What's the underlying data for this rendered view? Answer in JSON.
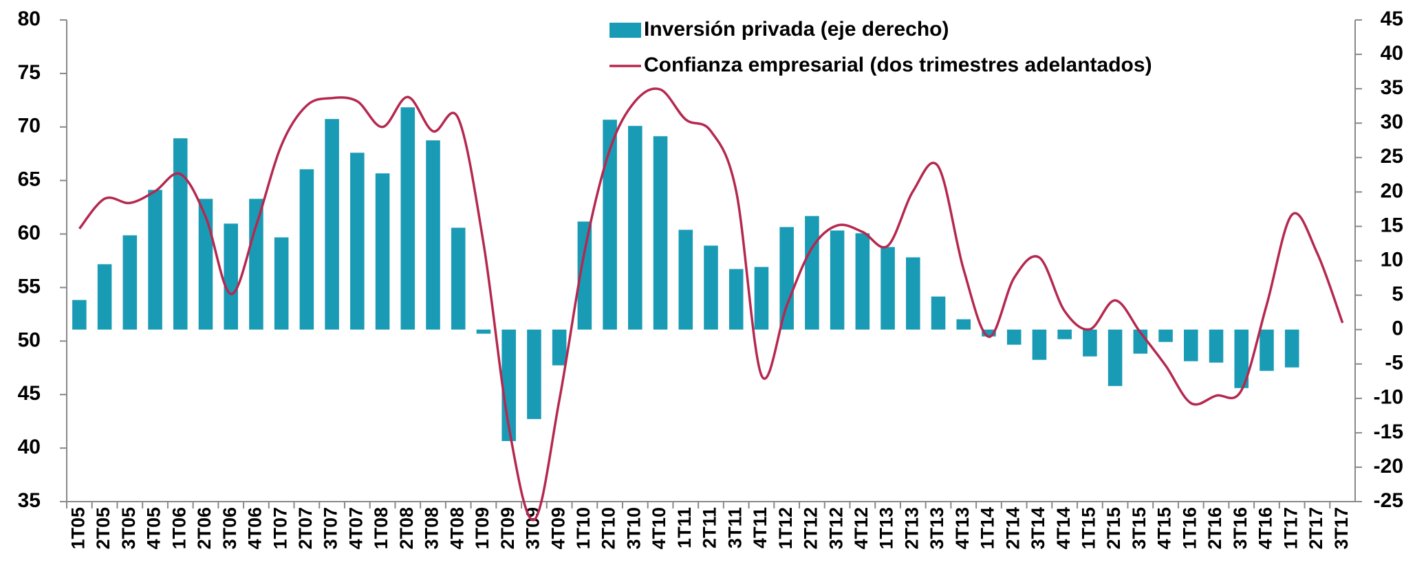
{
  "chart_data": {
    "type": "bar+line",
    "categories": [
      "1T05",
      "2T05",
      "3T05",
      "4T05",
      "1T06",
      "2T06",
      "3T06",
      "4T06",
      "1T07",
      "2T07",
      "3T07",
      "4T07",
      "1T08",
      "2T08",
      "3T08",
      "4T08",
      "1T09",
      "2T09",
      "3T09",
      "4T09",
      "1T10",
      "2T10",
      "3T10",
      "4T10",
      "1T11",
      "2T11",
      "3T11",
      "4T11",
      "1T12",
      "2T12",
      "3T12",
      "4T12",
      "1T13",
      "2T13",
      "3T13",
      "4T13",
      "1T14",
      "2T14",
      "3T14",
      "4T14",
      "1T15",
      "2T15",
      "3T15",
      "4T15",
      "1T16",
      "2T16",
      "3T16",
      "4T16",
      "1T17",
      "2T17",
      "3T17"
    ],
    "series": [
      {
        "name": "Inversión privada (eje derecho)",
        "type": "bar",
        "axis": "y2",
        "color": "#1a9bb5",
        "values": [
          4.3,
          9.5,
          13.7,
          20.3,
          27.8,
          19,
          15.4,
          19,
          13.4,
          23.3,
          30.6,
          25.7,
          22.7,
          32.3,
          27.5,
          14.8,
          -0.6,
          -16.2,
          -13,
          -5.2,
          15.7,
          30.5,
          29.6,
          28.1,
          14.5,
          12.2,
          8.8,
          9.1,
          14.9,
          16.5,
          14.4,
          14,
          12,
          10.5,
          4.8,
          1.5,
          -1,
          -2.2,
          -4.4,
          -1.4,
          -3.9,
          -8.2,
          -3.5,
          -1.8,
          -4.6,
          -4.8,
          -8.5,
          -6,
          -5.5,
          null,
          null
        ]
      },
      {
        "name": "Confianza empresarial (dos trimestres adelantados)",
        "type": "line",
        "axis": "y",
        "color": "#b5284f",
        "values": [
          60.5,
          63.3,
          62.9,
          64,
          65.6,
          61.6,
          54.4,
          60.8,
          68.3,
          72,
          72.7,
          72.4,
          70,
          72.8,
          69.6,
          70.8,
          59.1,
          42,
          33.3,
          44.5,
          58.4,
          67.9,
          72.4,
          73.5,
          70.7,
          69.6,
          64,
          46.8,
          53.3,
          58.7,
          60.8,
          60.2,
          58.9,
          64,
          66.3,
          56.7,
          50.4,
          55.9,
          57.8,
          52.8,
          51.1,
          53.8,
          50.8,
          47.7,
          44.2,
          44.9,
          45.4,
          53.4,
          61.8,
          58.2,
          51.7
        ]
      }
    ],
    "ylim": [
      35,
      80
    ],
    "yticks": [
      35,
      40,
      45,
      50,
      55,
      60,
      65,
      70,
      75,
      80
    ],
    "y2lim": [
      -25,
      45
    ],
    "y2ticks": [
      -25,
      -20,
      -15,
      -10,
      -5,
      0,
      5,
      10,
      15,
      20,
      25,
      30,
      35,
      40,
      45
    ],
    "legend": "top"
  }
}
